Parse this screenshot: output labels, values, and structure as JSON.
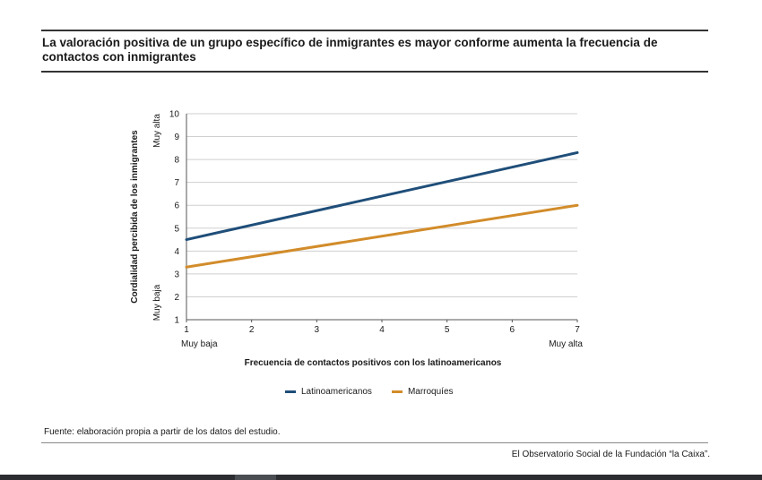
{
  "title": "La valoración positiva de un grupo específico de inmigrantes es mayor conforme aumenta la frecuencia de contactos con inmigrantes",
  "source": "Fuente: elaboración propia a partir de los datos del estudio.",
  "credit": "El Observatorio Social de la Fundación “la Caixa”.",
  "colors": {
    "latinoamericanos": "#1f4e79",
    "marroquies": "#d28c2a",
    "grid": "#cfcfcf",
    "axis": "#555555"
  },
  "chart_data": {
    "type": "line",
    "title": "",
    "xlabel": "Frecuencia de contactos positivos con los latinoamericanos",
    "ylabel": "Cordialidad percibida de los inmigrantes",
    "x_ticks": [
      1,
      2,
      3,
      4,
      5,
      6,
      7
    ],
    "y_ticks": [
      1,
      2,
      3,
      4,
      5,
      6,
      7,
      8,
      9,
      10
    ],
    "xlim": [
      1,
      7
    ],
    "ylim": [
      1,
      10
    ],
    "x_extreme_labels": {
      "low": "Muy baja",
      "high": "Muy alta"
    },
    "y_extreme_labels": {
      "low": "Muy baja",
      "high": "Muy alta"
    },
    "grid": "horizontal",
    "legend_position": "bottom",
    "series": [
      {
        "name": "Latinoamericanos",
        "x": [
          1,
          7
        ],
        "y": [
          4.5,
          8.3
        ]
      },
      {
        "name": "Marroquíes",
        "x": [
          1,
          7
        ],
        "y": [
          3.3,
          6.0
        ]
      }
    ]
  }
}
